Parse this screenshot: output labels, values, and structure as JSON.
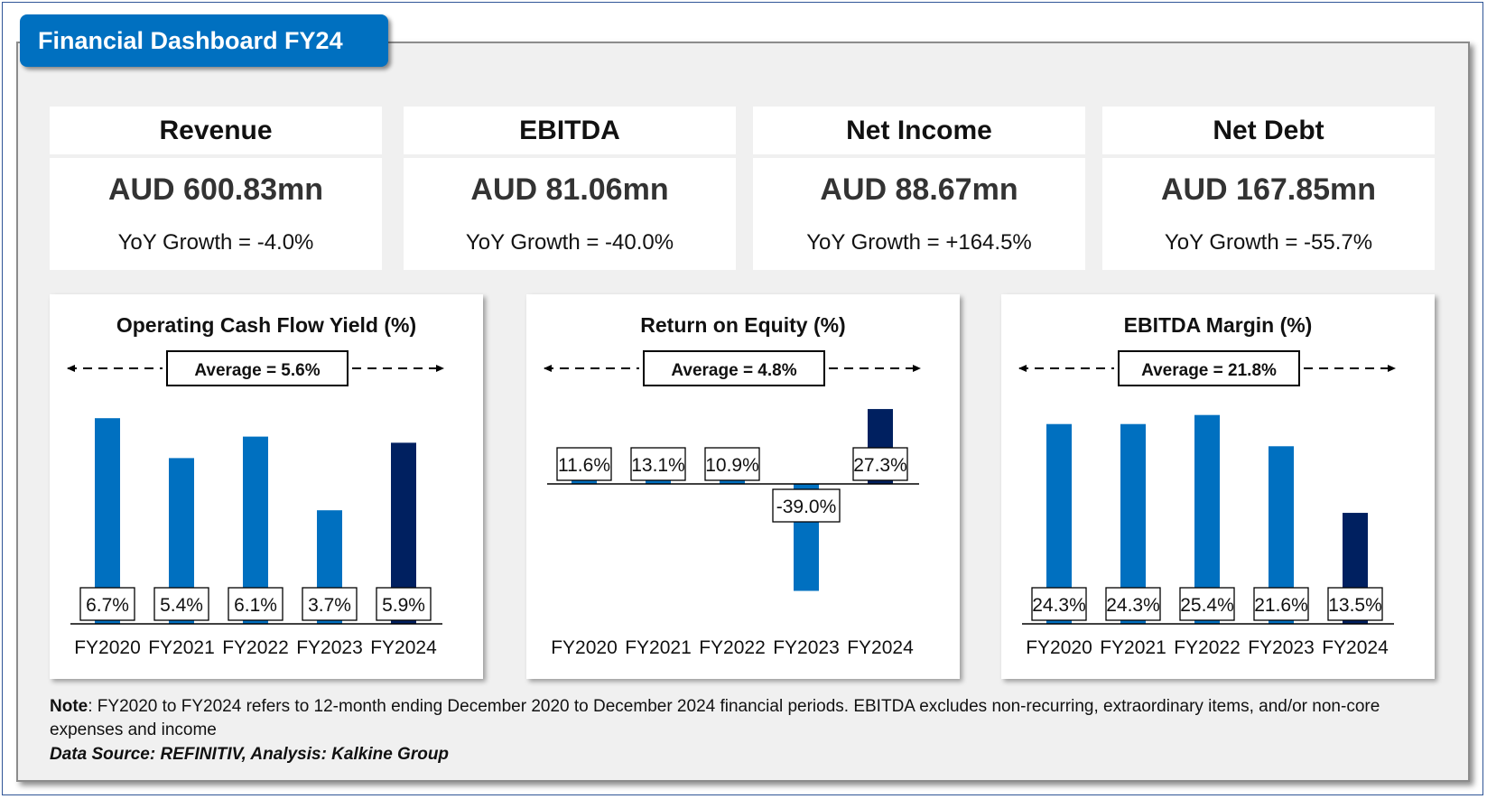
{
  "header": {
    "title": "Financial Dashboard FY24"
  },
  "kpis": [
    {
      "label": "Revenue",
      "value": "AUD 600.83mn",
      "yoy": "YoY Growth = -4.0%"
    },
    {
      "label": "EBITDA",
      "value": "AUD 81.06mn",
      "yoy": "YoY Growth = -40.0%"
    },
    {
      "label": "Net Income",
      "value": "AUD 88.67mn",
      "yoy": "YoY Growth = +164.5%"
    },
    {
      "label": "Net Debt",
      "value": "AUD 167.85mn",
      "yoy": "YoY Growth = -55.7%"
    }
  ],
  "colors": {
    "bar": "#0070c0",
    "highlight": "#002060",
    "title_bg": "#0070c0"
  },
  "chart_data": [
    {
      "type": "bar",
      "title": "Operating Cash Flow Yield (%)",
      "average_label": "Average = 5.6%",
      "categories": [
        "FY2020",
        "FY2021",
        "FY2022",
        "FY2023",
        "FY2024"
      ],
      "values": [
        6.7,
        5.4,
        6.1,
        3.7,
        5.9
      ],
      "labels": [
        "6.7%",
        "5.4%",
        "6.1%",
        "3.7%",
        "5.9%"
      ],
      "ylim": [
        0,
        7.5
      ],
      "highlight_index": 4,
      "label_position": "base"
    },
    {
      "type": "bar",
      "title": "Return on Equity (%)",
      "average_label": "Average = 4.8%",
      "categories": [
        "FY2020",
        "FY2021",
        "FY2022",
        "FY2023",
        "FY2024"
      ],
      "values": [
        11.6,
        13.1,
        10.9,
        -39.0,
        27.3
      ],
      "labels": [
        "11.6%",
        "13.1%",
        "10.9%",
        "-39.0%",
        "27.3%"
      ],
      "ylim": [
        -40,
        40
      ],
      "highlight_index": 4,
      "label_position": "axis"
    },
    {
      "type": "bar",
      "title": "EBITDA Margin (%)",
      "average_label": "Average = 21.8%",
      "categories": [
        "FY2020",
        "FY2021",
        "FY2022",
        "FY2023",
        "FY2024"
      ],
      "values": [
        24.3,
        24.3,
        25.4,
        21.6,
        13.5
      ],
      "labels": [
        "24.3%",
        "24.3%",
        "25.4%",
        "21.6%",
        "13.5%"
      ],
      "ylim": [
        0,
        28
      ],
      "highlight_index": 4,
      "label_position": "base"
    }
  ],
  "footer": {
    "note_label": "Note",
    "note_text": ": FY2020 to FY2024 refers to 12-month ending December 2020 to December 2024 financial periods. EBITDA excludes non-recurring, extraordinary items, and/or non-core expenses and income",
    "source": "Data Source: REFINITIV, Analysis: Kalkine Group"
  }
}
